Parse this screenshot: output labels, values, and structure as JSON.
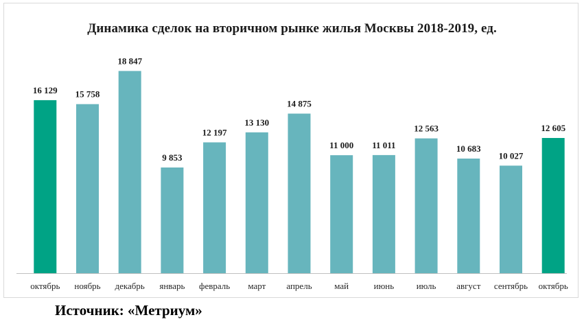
{
  "chart_data": {
    "type": "bar",
    "title": "Динамика сделок на вторичном рынке жилья Москвы 2018-2019, ед.",
    "xlabel": "",
    "ylabel": "",
    "ylim": [
      0,
      20000
    ],
    "grid": false,
    "categories": [
      "октябрь",
      "ноябрь",
      "декабрь",
      "январь",
      "февраль",
      "март",
      "апрель",
      "май",
      "июнь",
      "июль",
      "август",
      "сентябрь",
      "октябрь"
    ],
    "values": [
      16129,
      15758,
      18847,
      9853,
      12197,
      13130,
      14875,
      11000,
      11011,
      12563,
      10683,
      10027,
      12605
    ],
    "value_labels": [
      "16 129",
      "15 758",
      "18 847",
      "9 853",
      "12 197",
      "13 130",
      "14 875",
      "11 000",
      "11 011",
      "12 563",
      "10 683",
      "10 027",
      "12 605"
    ],
    "bar_colors": [
      "#00a385",
      "#67b5bd",
      "#67b5bd",
      "#67b5bd",
      "#67b5bd",
      "#67b5bd",
      "#67b5bd",
      "#67b5bd",
      "#67b5bd",
      "#67b5bd",
      "#67b5bd",
      "#67b5bd",
      "#00a385"
    ]
  },
  "footer": {
    "source": "Источник: «Метриум»"
  },
  "colors": {
    "highlight_bar": "#00a385",
    "regular_bar": "#67b5bd",
    "axis": "#bfbfbf"
  }
}
